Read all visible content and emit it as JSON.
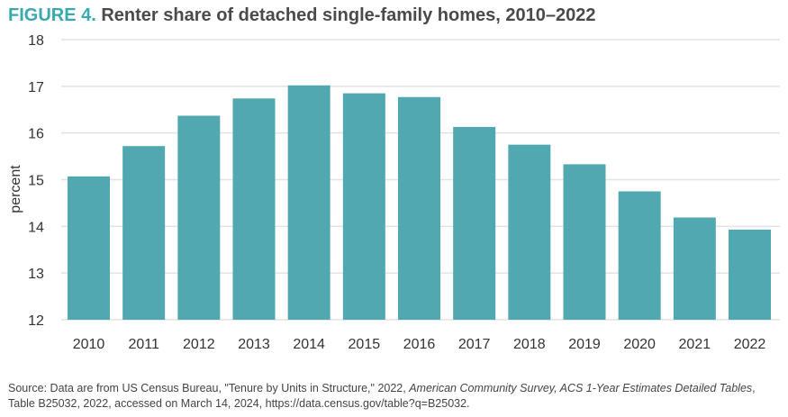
{
  "figure_label": "FIGURE 4.",
  "title": "Renter share of detached single-family homes, 2010–2022",
  "chart_data": {
    "type": "bar",
    "title": "Renter share of detached single-family homes, 2010–2022",
    "xlabel": "",
    "ylabel": "percent",
    "ylim": [
      12,
      18
    ],
    "yticks": [
      "12",
      "13",
      "14",
      "15",
      "16",
      "17",
      "18"
    ],
    "categories": [
      "2010",
      "2011",
      "2012",
      "2013",
      "2014",
      "2015",
      "2016",
      "2017",
      "2018",
      "2019",
      "2020",
      "2021",
      "2022"
    ],
    "values": [
      15.07,
      15.72,
      16.37,
      16.74,
      17.02,
      16.85,
      16.77,
      16.13,
      15.75,
      15.33,
      14.75,
      14.19,
      13.93
    ],
    "grid": true,
    "bar_color": "#52a8b0"
  },
  "source": {
    "part1": "Source: Data are from US Census Bureau, \"Tenure by Units in Structure,\" 2022, ",
    "italic1": "American Community Survey, ACS 1-Year Estimates Detailed Tables",
    "part2": ", Table B25032, 2022, accessed on March 14, 2024, https://data.census.gov/table?q=B25032."
  }
}
